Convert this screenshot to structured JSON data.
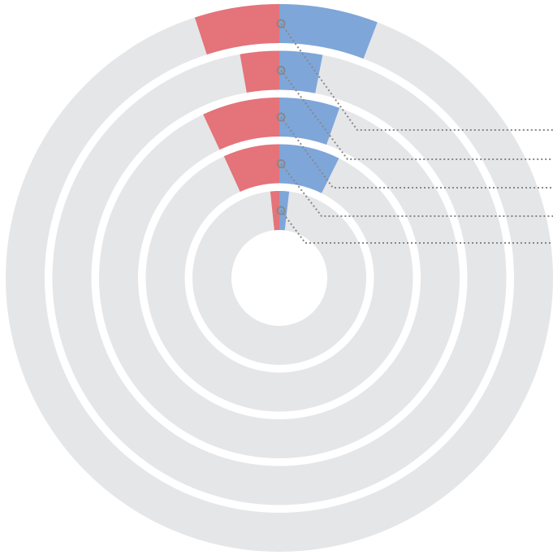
{
  "chart_data": {
    "type": "radial-bar",
    "xlim": [
      0,
      360
    ],
    "series": [
      {
        "color": "#e5737a",
        "values": [
          18,
          10,
          25,
          24.5,
          6
        ]
      },
      {
        "color": "#7ea6d9",
        "values": [
          21,
          11,
          19.5,
          26.5,
          6.5
        ]
      }
    ],
    "track_color": "#e5e6e8"
  }
}
